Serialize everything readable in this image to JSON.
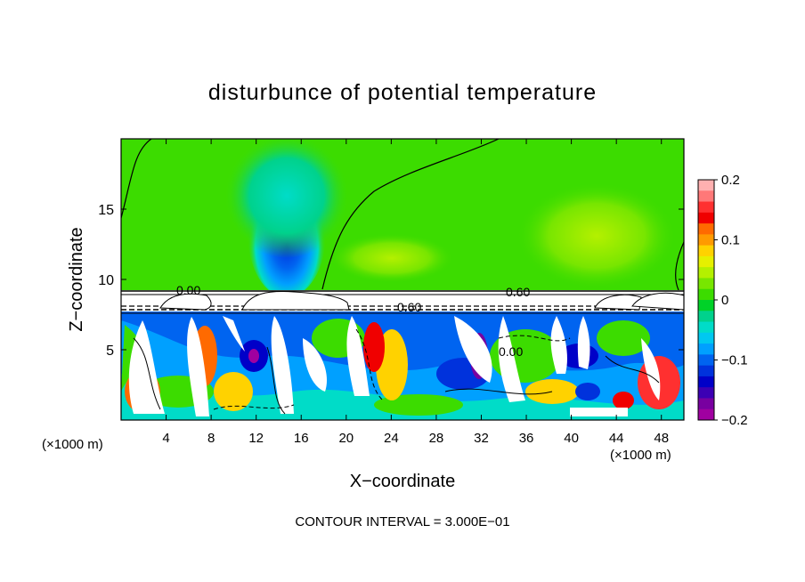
{
  "chart_data": {
    "type": "heatmap",
    "title": "disturbunce of potential temperature",
    "xlabel": "X−coordinate",
    "ylabel": "Z−coordinate",
    "x_unit_label": "(×1000 m)",
    "footer": "CONTOUR INTERVAL = 3.000E−01",
    "xlim": [
      0,
      50
    ],
    "ylim": [
      0,
      20
    ],
    "x_ticks": [
      4,
      8,
      12,
      16,
      20,
      24,
      28,
      32,
      36,
      40,
      44,
      48
    ],
    "y_ticks": [
      5,
      10,
      15
    ],
    "colorbar": {
      "min": -0.2,
      "max": 0.2,
      "tick_labels": [
        "0.2",
        "0.1",
        "0",
        "−0.1",
        "−0.2"
      ],
      "tick_values": [
        0.2,
        0.1,
        0,
        -0.1,
        -0.2
      ],
      "colors_top_to_bottom": [
        "#ffb0b0",
        "#ff7878",
        "#ff3030",
        "#f00000",
        "#ff6a00",
        "#ff9a00",
        "#ffd200",
        "#e6f000",
        "#b4f000",
        "#78e600",
        "#3cdc00",
        "#00d228",
        "#00d28c",
        "#00dcc8",
        "#00c8f0",
        "#00a0ff",
        "#0064f0",
        "#0032dc",
        "#0000c8",
        "#3c00b4",
        "#7800a0",
        "#a000a0"
      ]
    },
    "contour_labels": [
      {
        "text": "0.00",
        "x": 6.5,
        "z": 9.3
      },
      {
        "text": "0.60",
        "x": 34.5,
        "z": 9.2
      },
      {
        "text": "0.60",
        "x": 26.5,
        "z": 8.1
      },
      {
        "text": "0.00",
        "x": 34.5,
        "z": 4.8
      }
    ],
    "regions": {
      "upper": {
        "z_range": [
          9.3,
          20
        ],
        "description_value": 0.0
      },
      "inversion": {
        "z_range": [
          8.0,
          9.3
        ],
        "value": 0.6
      },
      "lower": {
        "z_range": [
          0,
          8.0
        ],
        "value_range": [
          -0.2,
          0.2
        ]
      }
    }
  }
}
